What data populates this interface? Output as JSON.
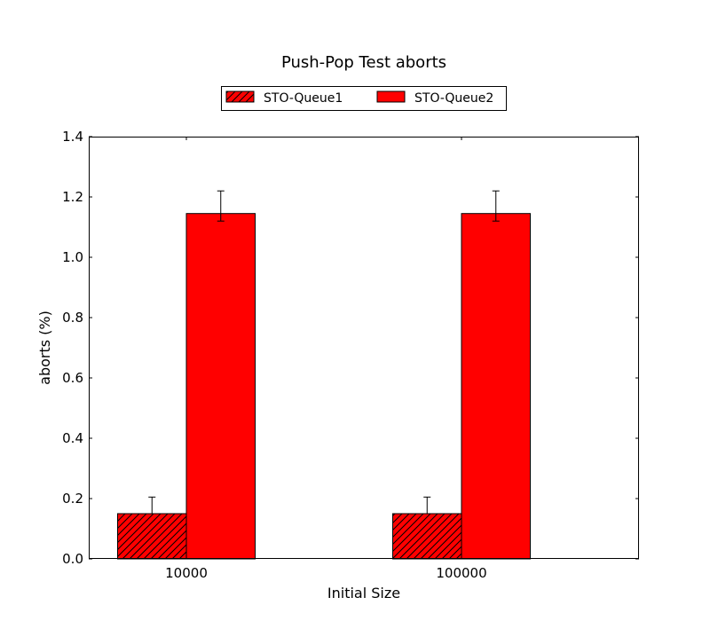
{
  "chart_data": {
    "type": "bar",
    "title": "Push-Pop Test aborts",
    "xlabel": "Initial Size",
    "ylabel": "aborts (%)",
    "categories": [
      "10000",
      "100000"
    ],
    "ylim": [
      0,
      1.4
    ],
    "yticks": [
      "0.0",
      "0.2",
      "0.4",
      "0.6",
      "0.8",
      "1.0",
      "1.2",
      "1.4"
    ],
    "grid": false,
    "legend_position": "top-center",
    "series": [
      {
        "name": "STO-Queue1",
        "values": [
          0.15,
          0.15
        ],
        "err_low": [
          0.0,
          0.0
        ],
        "err_high": [
          0.055,
          0.055
        ],
        "color": "#ff0000",
        "hatch": true
      },
      {
        "name": "STO-Queue2",
        "values": [
          1.145,
          1.145
        ],
        "err_low": [
          0.025,
          0.025
        ],
        "err_high": [
          0.075,
          0.075
        ],
        "color": "#ff0000",
        "hatch": false
      }
    ]
  }
}
